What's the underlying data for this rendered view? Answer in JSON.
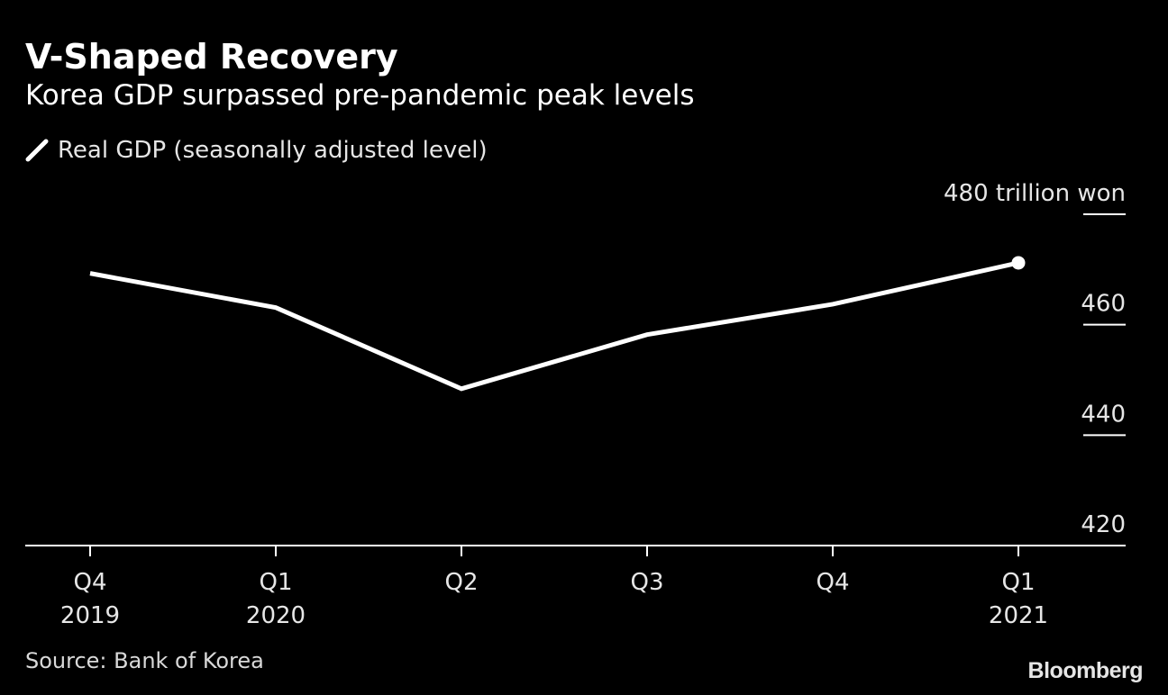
{
  "chart_data": {
    "type": "line",
    "title": "V-Shaped Recovery",
    "subtitle": "Korea GDP surpassed pre-pandemic peak levels",
    "legend": [
      {
        "name": "Real GDP (seasonally adjusted level)",
        "color": "#ffffff"
      }
    ],
    "legend_position": "top-left",
    "categories": [
      {
        "quarter": "Q4",
        "year": "2019"
      },
      {
        "quarter": "Q1",
        "year": "2020"
      },
      {
        "quarter": "Q2",
        "year": ""
      },
      {
        "quarter": "Q3",
        "year": ""
      },
      {
        "quarter": "Q4",
        "year": ""
      },
      {
        "quarter": "Q1",
        "year": "2021"
      }
    ],
    "series": [
      {
        "name": "Real GDP (seasonally adjusted level)",
        "values": [
          469.3,
          463.1,
          448.4,
          458.2,
          463.7,
          471.2
        ],
        "color": "#ffffff",
        "end_marker": true
      }
    ],
    "y_axis": {
      "position": "right",
      "ylim": [
        420,
        480
      ],
      "ticks": [
        420,
        440,
        460,
        480
      ],
      "tick_labels": [
        "420",
        "440",
        "460",
        "480 trillion won"
      ]
    },
    "grid": false,
    "source": "Source: Bank of Korea",
    "brand": "Bloomberg",
    "background": "#000000"
  }
}
